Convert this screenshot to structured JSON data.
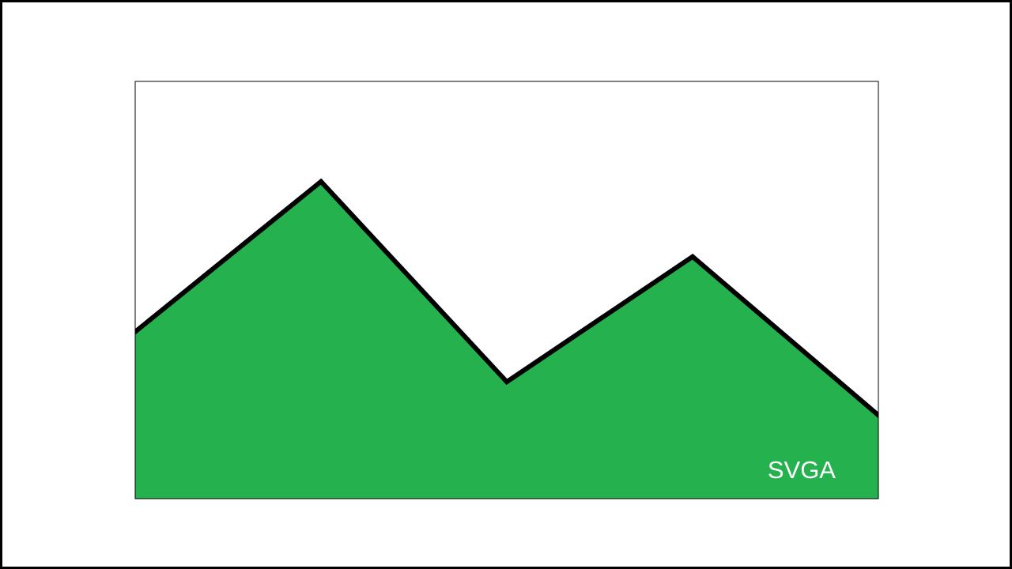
{
  "chart_data": {
    "type": "area",
    "x": [
      0,
      1,
      2,
      3,
      4
    ],
    "values": [
      40,
      76,
      28,
      58,
      20
    ],
    "xlim": [
      0,
      4
    ],
    "ylim": [
      0,
      100
    ],
    "grid": false,
    "label": "SVGA",
    "colors": {
      "fill": "#24b14e",
      "line": "#000000",
      "frame": "#000000",
      "label": "#ffffff"
    }
  }
}
